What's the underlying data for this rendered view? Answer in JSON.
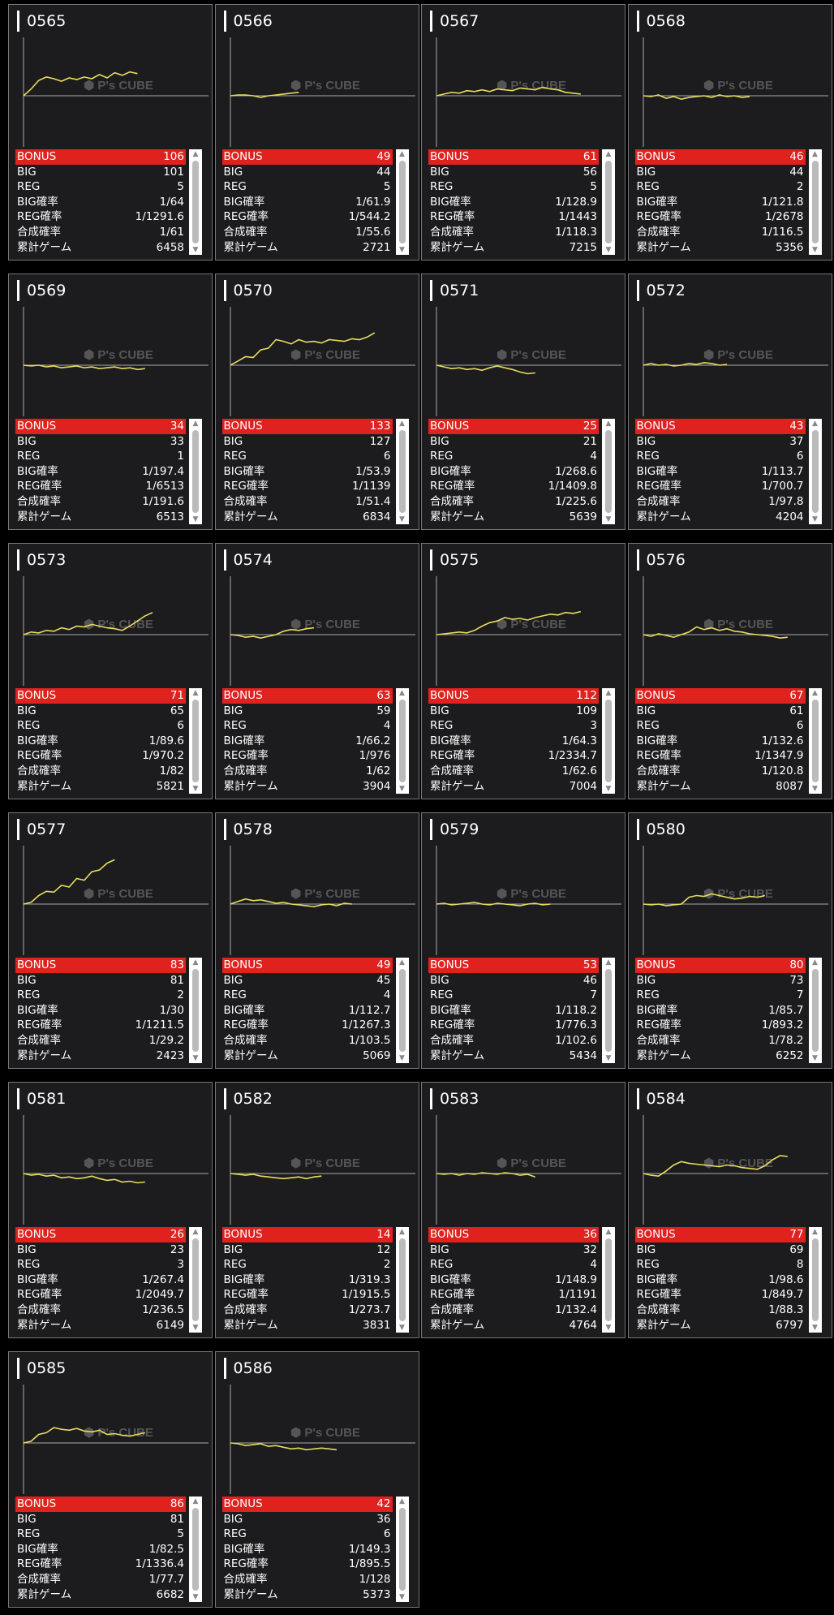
{
  "labels": {
    "bonus": "BONUS",
    "big": "BIG",
    "reg": "REG",
    "big_rate": "BIG確率",
    "reg_rate": "REG確率",
    "total_rate": "合成確率",
    "games": "累計ゲーム"
  },
  "watermark": {
    "brand": "P's CUBE"
  },
  "colors": {
    "line": "#e8dc5e",
    "bonus_bg": "#e0221f",
    "card_bg": "#1c1c1e"
  },
  "machines": [
    {
      "num": "0565",
      "bonus": "106",
      "big": "101",
      "reg": "5",
      "big_rate": "1/64",
      "reg_rate": "1/1291.6",
      "total_rate": "1/61",
      "games": "6458",
      "trend": [
        0,
        8,
        18,
        22,
        20,
        17,
        21,
        19,
        22,
        20,
        25,
        21,
        27,
        24,
        28,
        26
      ]
    },
    {
      "num": "0566",
      "bonus": "49",
      "big": "44",
      "reg": "5",
      "big_rate": "1/61.9",
      "reg_rate": "1/544.2",
      "total_rate": "1/55.6",
      "games": "2721",
      "trend": [
        0,
        1,
        1,
        0,
        -2,
        0,
        1,
        2,
        3,
        4
      ]
    },
    {
      "num": "0567",
      "bonus": "61",
      "big": "56",
      "reg": "5",
      "big_rate": "1/128.9",
      "reg_rate": "1/1443",
      "total_rate": "1/118.3",
      "games": "7215",
      "trend": [
        0,
        2,
        4,
        3,
        6,
        5,
        7,
        5,
        8,
        7,
        6,
        9,
        8,
        7,
        10,
        8,
        7,
        4,
        3,
        2
      ]
    },
    {
      "num": "0568",
      "bonus": "46",
      "big": "44",
      "reg": "2",
      "big_rate": "1/121.8",
      "reg_rate": "1/2678",
      "total_rate": "1/116.5",
      "games": "5356",
      "trend": [
        0,
        -1,
        1,
        -3,
        -1,
        -4,
        -2,
        -1,
        0,
        -2,
        1,
        -1,
        0,
        -2,
        -1
      ]
    },
    {
      "num": "0569",
      "bonus": "34",
      "big": "33",
      "reg": "1",
      "big_rate": "1/197.4",
      "reg_rate": "1/6513",
      "total_rate": "1/191.6",
      "games": "6513",
      "trend": [
        0,
        -1,
        0,
        -2,
        -1,
        -3,
        -2,
        -1,
        -3,
        -2,
        -4,
        -3,
        -2,
        -4,
        -3,
        -5,
        -4
      ]
    },
    {
      "num": "0570",
      "bonus": "133",
      "big": "127",
      "reg": "6",
      "big_rate": "1/53.9",
      "reg_rate": "1/1139",
      "total_rate": "1/51.4",
      "games": "6834",
      "trend": [
        0,
        5,
        10,
        9,
        18,
        20,
        30,
        28,
        25,
        30,
        27,
        28,
        26,
        30,
        29,
        28,
        31,
        30,
        33,
        38
      ]
    },
    {
      "num": "0571",
      "bonus": "25",
      "big": "21",
      "reg": "4",
      "big_rate": "1/268.6",
      "reg_rate": "1/1409.8",
      "total_rate": "1/225.6",
      "games": "5639",
      "trend": [
        0,
        -2,
        -4,
        -3,
        -5,
        -4,
        -6,
        -3,
        -1,
        -3,
        -5,
        -8,
        -10,
        -9
      ]
    },
    {
      "num": "0572",
      "bonus": "43",
      "big": "37",
      "reg": "6",
      "big_rate": "1/113.7",
      "reg_rate": "1/700.7",
      "total_rate": "1/97.8",
      "games": "4204",
      "trend": [
        0,
        2,
        0,
        1,
        -1,
        0,
        2,
        1,
        3,
        2,
        0,
        1
      ]
    },
    {
      "num": "0573",
      "bonus": "71",
      "big": "65",
      "reg": "6",
      "big_rate": "1/89.6",
      "reg_rate": "1/970.2",
      "total_rate": "1/82",
      "games": "5821",
      "trend": [
        0,
        3,
        2,
        5,
        4,
        8,
        6,
        10,
        9,
        12,
        10,
        8,
        7,
        5,
        10,
        16,
        22,
        26
      ]
    },
    {
      "num": "0574",
      "bonus": "63",
      "big": "59",
      "reg": "4",
      "big_rate": "1/66.2",
      "reg_rate": "1/976",
      "total_rate": "1/62",
      "games": "3904",
      "trend": [
        0,
        -1,
        -3,
        -2,
        -4,
        -2,
        0,
        4,
        6,
        5,
        7,
        8
      ]
    },
    {
      "num": "0575",
      "bonus": "112",
      "big": "109",
      "reg": "3",
      "big_rate": "1/64.3",
      "reg_rate": "1/2334.7",
      "total_rate": "1/62.6",
      "games": "7004",
      "trend": [
        0,
        1,
        2,
        3,
        2,
        5,
        10,
        14,
        16,
        20,
        18,
        19,
        17,
        20,
        22,
        24,
        23,
        26,
        25,
        27
      ]
    },
    {
      "num": "0576",
      "bonus": "67",
      "big": "61",
      "reg": "6",
      "big_rate": "1/132.6",
      "reg_rate": "1/1347.9",
      "total_rate": "1/120.8",
      "games": "8087",
      "trend": [
        0,
        -2,
        1,
        -1,
        -3,
        0,
        3,
        9,
        6,
        8,
        5,
        7,
        4,
        3,
        1,
        0,
        -1,
        -2,
        -4,
        -3
      ]
    },
    {
      "num": "0577",
      "bonus": "83",
      "big": "81",
      "reg": "2",
      "big_rate": "1/30",
      "reg_rate": "1/1211.5",
      "total_rate": "1/29.2",
      "games": "2423",
      "trend": [
        0,
        2,
        10,
        15,
        14,
        22,
        20,
        30,
        28,
        38,
        40,
        48,
        52
      ]
    },
    {
      "num": "0578",
      "bonus": "49",
      "big": "45",
      "reg": "4",
      "big_rate": "1/112.7",
      "reg_rate": "1/1267.3",
      "total_rate": "1/103.5",
      "games": "5069",
      "trend": [
        0,
        3,
        6,
        4,
        5,
        3,
        1,
        2,
        0,
        -1,
        -2,
        -3,
        -1,
        0,
        -2,
        1,
        0
      ]
    },
    {
      "num": "0579",
      "bonus": "53",
      "big": "46",
      "reg": "7",
      "big_rate": "1/118.2",
      "reg_rate": "1/776.3",
      "total_rate": "1/102.6",
      "games": "5434",
      "trend": [
        0,
        1,
        -1,
        0,
        1,
        2,
        0,
        -1,
        1,
        0,
        -1,
        -2,
        0,
        1,
        -1,
        0
      ]
    },
    {
      "num": "0580",
      "bonus": "80",
      "big": "73",
      "reg": "7",
      "big_rate": "1/85.7",
      "reg_rate": "1/893.2",
      "total_rate": "1/78.2",
      "games": "6252",
      "trend": [
        0,
        -1,
        0,
        -2,
        -1,
        0,
        8,
        10,
        9,
        12,
        10,
        8,
        6,
        7,
        9,
        8,
        10
      ]
    },
    {
      "num": "0581",
      "bonus": "26",
      "big": "23",
      "reg": "3",
      "big_rate": "1/267.4",
      "reg_rate": "1/2049.7",
      "total_rate": "1/236.5",
      "games": "6149",
      "trend": [
        0,
        -2,
        -1,
        -3,
        -2,
        -5,
        -4,
        -6,
        -5,
        -3,
        -6,
        -8,
        -7,
        -10,
        -9,
        -11,
        -10
      ]
    },
    {
      "num": "0582",
      "bonus": "14",
      "big": "12",
      "reg": "2",
      "big_rate": "1/319.3",
      "reg_rate": "1/1915.5",
      "total_rate": "1/273.7",
      "games": "3831",
      "trend": [
        0,
        -1,
        -2,
        -1,
        -3,
        -4,
        -5,
        -6,
        -5,
        -4,
        -6,
        -4,
        -3
      ]
    },
    {
      "num": "0583",
      "bonus": "36",
      "big": "32",
      "reg": "4",
      "big_rate": "1/148.9",
      "reg_rate": "1/1191",
      "total_rate": "1/132.4",
      "games": "4764",
      "trend": [
        0,
        -1,
        0,
        -2,
        0,
        -1,
        1,
        0,
        -1,
        1,
        0,
        -2,
        -1,
        -4
      ]
    },
    {
      "num": "0584",
      "bonus": "77",
      "big": "69",
      "reg": "8",
      "big_rate": "1/98.6",
      "reg_rate": "1/849.7",
      "total_rate": "1/88.3",
      "games": "6797",
      "trend": [
        0,
        -2,
        -3,
        3,
        10,
        14,
        12,
        11,
        10,
        9,
        8,
        10,
        9,
        7,
        6,
        5,
        9,
        16,
        21,
        20
      ]
    },
    {
      "num": "0585",
      "bonus": "86",
      "big": "81",
      "reg": "5",
      "big_rate": "1/82.5",
      "reg_rate": "1/1336.4",
      "total_rate": "1/77.7",
      "games": "6682",
      "trend": [
        0,
        2,
        10,
        12,
        18,
        16,
        15,
        17,
        14,
        13,
        15,
        10,
        11,
        9,
        8,
        10,
        12
      ]
    },
    {
      "num": "0586",
      "bonus": "42",
      "big": "36",
      "reg": "6",
      "big_rate": "1/149.3",
      "reg_rate": "1/895.5",
      "total_rate": "1/128",
      "games": "5373",
      "trend": [
        0,
        -1,
        -3,
        -2,
        -1,
        -4,
        -3,
        -5,
        -7,
        -6,
        -8,
        -7,
        -6,
        -7,
        -8
      ]
    }
  ]
}
